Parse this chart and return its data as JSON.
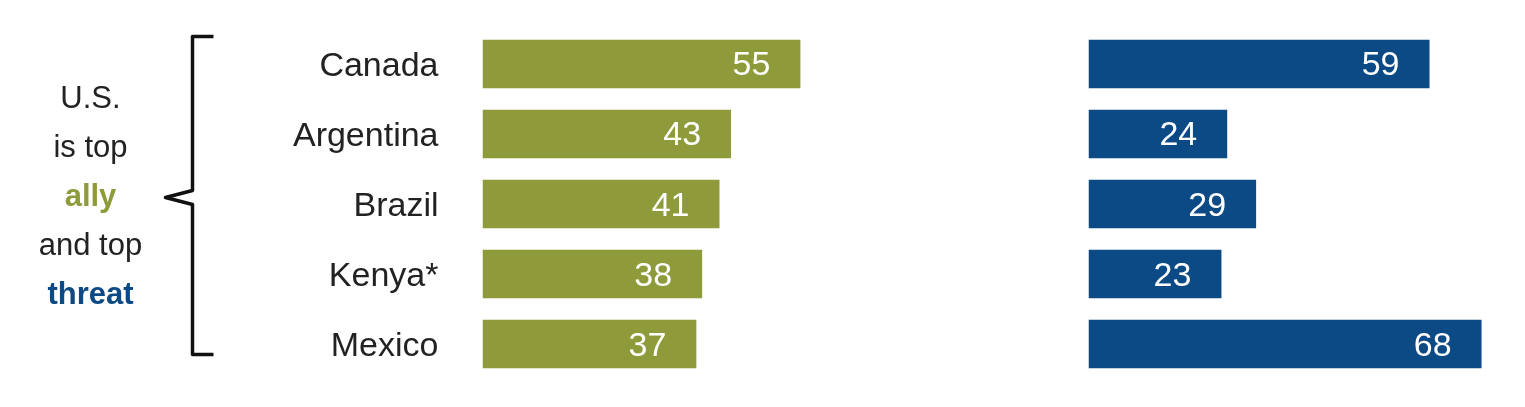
{
  "chart_data": [
    {
      "type": "bar",
      "orientation": "horizontal",
      "categories": [
        "Canada",
        "Argentina",
        "Brazil",
        "Kenya*",
        "Mexico"
      ],
      "series": [
        {
          "color": "#8f9b3a",
          "values": [
            55,
            43,
            41,
            38,
            37
          ]
        }
      ],
      "data_labels": true,
      "tick_labels": "y",
      "annotations": [
        "U.S.",
        "is top",
        "ally",
        "and top",
        "threat"
      ]
    },
    {
      "type": "bar",
      "orientation": "horizontal",
      "categories": [
        null,
        null,
        null,
        null,
        null
      ],
      "series": [
        {
          "color": "#0b4a85",
          "values": [
            59,
            24,
            29,
            23,
            68
          ]
        }
      ],
      "data_labels": true,
      "tick_labels": false
    }
  ]
}
